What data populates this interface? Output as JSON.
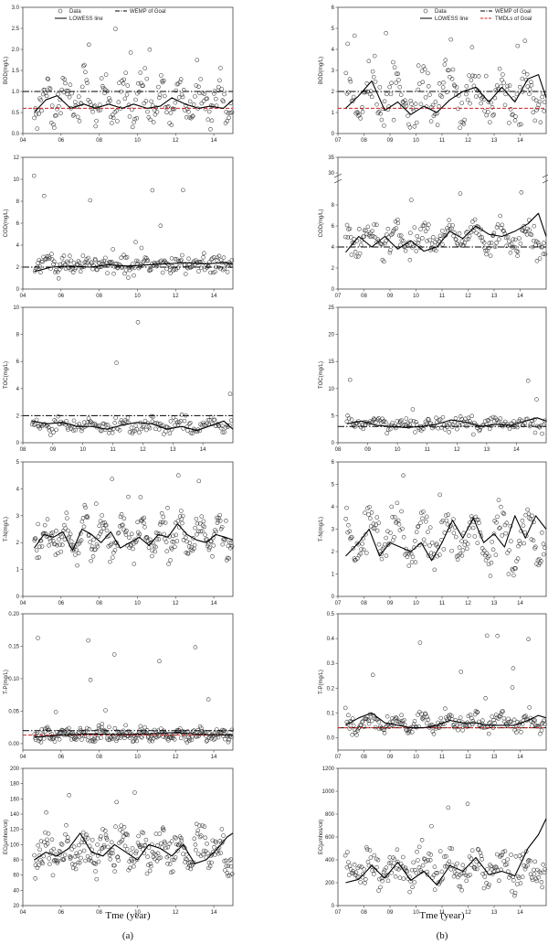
{
  "columns": [
    {
      "label": "(a)",
      "xtitle": "Tme (year)"
    },
    {
      "label": "(b)",
      "xtitle": "Tme (year)"
    }
  ],
  "legends": [
    {
      "items": [
        {
          "label": "Data",
          "kind": "marker"
        },
        {
          "label": "WEMP of Goal",
          "kind": "dashdot"
        },
        {
          "label": "LOWESS line",
          "kind": "line"
        }
      ]
    },
    {
      "items": [
        {
          "label": "Data",
          "kind": "marker"
        },
        {
          "label": "WEMP of Goal",
          "kind": "dashdot"
        },
        {
          "label": "LOWESS line",
          "kind": "line"
        },
        {
          "label": "TMDLs of Goal",
          "kind": "reddash"
        }
      ]
    }
  ],
  "colors": {
    "marker": "#333333",
    "lowess": "#000000",
    "wemp": "#000000",
    "tmdl": "#cc2222",
    "frame": "#444444"
  },
  "chart_data": [
    {
      "id": "a1",
      "type": "scatter",
      "ylabel": "BOD(mg/L)",
      "xlim": [
        2004,
        2015
      ],
      "ylim": [
        0,
        3
      ],
      "xticks": [
        "04",
        "06",
        "08",
        "10",
        "12",
        "14"
      ],
      "xtick_values": [
        2004,
        2006,
        2008,
        2010,
        2012,
        2014
      ],
      "yticks": [
        "0.0",
        "0.5",
        "1.0",
        "1.5",
        "2.0",
        "2.5",
        "3.0"
      ],
      "ytick_values": [
        0,
        0.5,
        1,
        1.5,
        2,
        2.5,
        3
      ],
      "wemp": 1.0,
      "tmdl": 0.6,
      "lowess_x": [
        2004.6,
        2005.2,
        2005.8,
        2006.5,
        2007.2,
        2007.8,
        2008.5,
        2009.2,
        2009.8,
        2010.5,
        2011.2,
        2011.8,
        2012.5,
        2013.2,
        2013.8,
        2014.5,
        2015
      ],
      "lowess_y": [
        0.5,
        0.8,
        0.9,
        0.6,
        0.7,
        0.6,
        0.7,
        0.6,
        0.7,
        0.6,
        0.65,
        0.85,
        0.7,
        0.6,
        0.65,
        0.6,
        0.8
      ],
      "scatter": {
        "x0": 2004.6,
        "x1": 2014.95,
        "n": 210,
        "base": 0.8,
        "amp": 0.35,
        "period": 1.0,
        "noise": 0.38,
        "spike": 0.06,
        "spikeMax": 2.8,
        "floor": 0.1
      }
    },
    {
      "id": "b1",
      "type": "scatter",
      "ylabel": "BOD(mg/L)",
      "xlim": [
        2007,
        2015
      ],
      "ylim": [
        0,
        6
      ],
      "xticks": [
        "07",
        "08",
        "09",
        "10",
        "11",
        "12",
        "13",
        "14"
      ],
      "xtick_values": [
        2007,
        2008,
        2009,
        2010,
        2011,
        2012,
        2013,
        2014
      ],
      "yticks": [
        "0",
        "1",
        "2",
        "3",
        "4",
        "5",
        "6"
      ],
      "ytick_values": [
        0,
        1,
        2,
        3,
        4,
        5,
        6
      ],
      "wemp": 2.0,
      "tmdl": 1.2,
      "lowess_x": [
        2007.3,
        2007.8,
        2008.3,
        2008.8,
        2009.3,
        2009.8,
        2010.3,
        2010.8,
        2011.3,
        2011.8,
        2012.3,
        2012.8,
        2013.3,
        2013.8,
        2014.3,
        2014.7,
        2015
      ],
      "lowess_y": [
        1.2,
        1.8,
        2.5,
        1.1,
        1.5,
        0.9,
        1.3,
        1.0,
        1.6,
        2.0,
        2.2,
        1.5,
        2.2,
        1.5,
        2.6,
        2.8,
        1.7
      ],
      "scatter": {
        "x0": 2007.3,
        "x1": 2014.95,
        "n": 200,
        "base": 1.7,
        "amp": 0.8,
        "period": 1.0,
        "noise": 0.9,
        "spike": 0.05,
        "spikeMax": 5.0,
        "floor": 0.2
      }
    },
    {
      "id": "a2",
      "type": "scatter",
      "ylabel": "COD(mg/L)",
      "xlim": [
        2004,
        2015
      ],
      "ylim": [
        0,
        12
      ],
      "xticks": [
        "04",
        "06",
        "08",
        "10",
        "12",
        "14"
      ],
      "xtick_values": [
        2004,
        2006,
        2008,
        2010,
        2012,
        2014
      ],
      "yticks": [
        "0",
        "2",
        "4",
        "6",
        "8",
        "10",
        "12"
      ],
      "ytick_values": [
        0,
        2,
        4,
        6,
        8,
        10,
        12
      ],
      "wemp": 2.0,
      "lowess_x": [
        2004.6,
        2005.5,
        2006.5,
        2007.5,
        2008.5,
        2009.5,
        2010.5,
        2011.5,
        2012.5,
        2013.5,
        2014.5,
        2015
      ],
      "lowess_y": [
        1.6,
        2.0,
        2.1,
        2.0,
        2.2,
        2.1,
        2.2,
        2.3,
        2.4,
        2.3,
        2.4,
        2.3
      ],
      "scatter": {
        "x0": 2004.6,
        "x1": 2014.95,
        "n": 220,
        "base": 2.2,
        "amp": 0.25,
        "period": 1.0,
        "noise": 0.75,
        "spike": 0.05,
        "spikeMax": 11.5,
        "floor": 0.9
      }
    },
    {
      "id": "b2",
      "type": "scatter",
      "ylabel": "COD(mg/L)",
      "xlim": [
        2007,
        2015
      ],
      "ylim": [
        0,
        35
      ],
      "broken": true,
      "xticks": [
        "07",
        "08",
        "09",
        "10",
        "11",
        "12",
        "13",
        "14"
      ],
      "xtick_values": [
        2007,
        2008,
        2009,
        2010,
        2011,
        2012,
        2013,
        2014
      ],
      "yticks": [
        "0",
        "2",
        "4",
        "6",
        "8",
        "30",
        "35"
      ],
      "ytick_values": [
        0,
        2,
        4,
        6,
        8,
        30,
        35
      ],
      "wemp": 4.0,
      "lowess_x": [
        2007.3,
        2007.8,
        2008.3,
        2008.8,
        2009.3,
        2009.8,
        2010.3,
        2010.8,
        2011.3,
        2011.8,
        2012.3,
        2012.8,
        2013.3,
        2013.8,
        2014.3,
        2014.7,
        2015
      ],
      "lowess_y": [
        3.5,
        5.0,
        4.0,
        5.0,
        3.8,
        4.6,
        3.6,
        4.0,
        5.5,
        4.8,
        6.0,
        5.2,
        5.0,
        5.5,
        6.2,
        7.2,
        5.0
      ],
      "scatter": {
        "x0": 2007.3,
        "x1": 2014.95,
        "n": 210,
        "base": 4.8,
        "amp": 1.0,
        "period": 1.0,
        "noise": 1.2,
        "spike": 0.01,
        "spikeMax": 33,
        "floor": 2.5
      }
    },
    {
      "id": "a3",
      "type": "scatter",
      "ylabel": "TOC(mg/L)",
      "xlim": [
        2008,
        2015
      ],
      "ylim": [
        0,
        10
      ],
      "xticks": [
        "08",
        "09",
        "10",
        "11",
        "12",
        "13",
        "14"
      ],
      "xtick_values": [
        2008,
        2009,
        2010,
        2011,
        2012,
        2013,
        2014
      ],
      "yticks": [
        "0",
        "2",
        "4",
        "6",
        "8",
        "10"
      ],
      "ytick_values": [
        0,
        2,
        4,
        6,
        8,
        10
      ],
      "wemp": 2.0,
      "lowess_x": [
        2008.3,
        2008.8,
        2009.3,
        2009.8,
        2010.3,
        2010.8,
        2011.3,
        2011.8,
        2012.3,
        2012.8,
        2013.3,
        2013.8,
        2014.3,
        2014.7,
        2015
      ],
      "lowess_y": [
        1.6,
        1.4,
        1.5,
        1.2,
        1.2,
        1.0,
        1.3,
        1.5,
        1.4,
        1.0,
        1.2,
        0.9,
        1.3,
        1.6,
        1.0
      ],
      "scatter": {
        "x0": 2008.3,
        "x1": 2014.95,
        "n": 170,
        "base": 1.3,
        "amp": 0.25,
        "period": 1.0,
        "noise": 0.45,
        "spike": 0.04,
        "spikeMax": 9.3,
        "floor": 0.5
      }
    },
    {
      "id": "b3",
      "type": "scatter",
      "ylabel": "TOC(mg/L)",
      "xlim": [
        2008,
        2015
      ],
      "ylim": [
        0,
        25
      ],
      "xticks": [
        "08",
        "09",
        "10",
        "11",
        "12",
        "13",
        "14"
      ],
      "xtick_values": [
        2008,
        2009,
        2010,
        2011,
        2012,
        2013,
        2014
      ],
      "yticks": [
        "0",
        "5",
        "10",
        "15",
        "20",
        "25"
      ],
      "ytick_values": [
        0,
        5,
        10,
        15,
        20,
        25
      ],
      "wemp": 3.0,
      "lowess_x": [
        2008.3,
        2008.8,
        2009.3,
        2009.8,
        2010.3,
        2010.8,
        2011.3,
        2011.8,
        2012.3,
        2012.8,
        2013.3,
        2013.8,
        2014.3,
        2014.7,
        2015
      ],
      "lowess_y": [
        3.5,
        4.0,
        3.2,
        3.0,
        2.8,
        3.0,
        3.4,
        4.2,
        3.8,
        3.0,
        3.4,
        3.2,
        4.0,
        4.6,
        4.0
      ],
      "scatter": {
        "x0": 2008.3,
        "x1": 2014.95,
        "n": 170,
        "base": 3.5,
        "amp": 0.6,
        "period": 1.0,
        "noise": 1.1,
        "spike": 0.03,
        "spikeMax": 21,
        "floor": 1.5
      }
    },
    {
      "id": "a4",
      "type": "scatter",
      "ylabel": "T-N(mg/L)",
      "xlim": [
        2004,
        2015
      ],
      "ylim": [
        0,
        5
      ],
      "xticks": [
        "04",
        "06",
        "08",
        "10",
        "12",
        "14"
      ],
      "xtick_values": [
        2004,
        2006,
        2008,
        2010,
        2012,
        2014
      ],
      "yticks": [
        "0",
        "1",
        "2",
        "3",
        "4",
        "5"
      ],
      "ytick_values": [
        0,
        1,
        2,
        3,
        4,
        5
      ],
      "lowess_x": [
        2004.6,
        2005.1,
        2005.6,
        2006.1,
        2006.6,
        2007.1,
        2007.6,
        2008.1,
        2008.6,
        2009.1,
        2009.6,
        2010.1,
        2010.6,
        2011.1,
        2011.6,
        2012.1,
        2012.6,
        2013.1,
        2013.6,
        2014.1,
        2014.6,
        2015
      ],
      "lowess_y": [
        1.8,
        2.3,
        2.2,
        2.4,
        1.7,
        2.5,
        2.3,
        2.0,
        2.4,
        1.8,
        2.0,
        2.2,
        1.9,
        2.3,
        2.2,
        2.7,
        2.3,
        2.1,
        2.0,
        2.3,
        2.2,
        2.1
      ],
      "scatter": {
        "x0": 2004.6,
        "x1": 2014.95,
        "n": 260,
        "base": 2.2,
        "amp": 0.45,
        "period": 1.0,
        "noise": 0.5,
        "spike": 0.03,
        "spikeMax": 4.6,
        "floor": 1.0
      }
    },
    {
      "id": "b4",
      "type": "scatter",
      "ylabel": "T-N(mg/L)",
      "xlim": [
        2007,
        2015
      ],
      "ylim": [
        0,
        6
      ],
      "xticks": [
        "07",
        "08",
        "09",
        "10",
        "11",
        "12",
        "13",
        "14"
      ],
      "xtick_values": [
        2007,
        2008,
        2009,
        2010,
        2011,
        2012,
        2013,
        2014
      ],
      "yticks": [
        "0",
        "1",
        "2",
        "3",
        "4",
        "5",
        "6"
      ],
      "ytick_values": [
        0,
        1,
        2,
        3,
        4,
        5,
        6
      ],
      "lowess_x": [
        2007.3,
        2007.8,
        2008.2,
        2008.6,
        2009.0,
        2009.4,
        2009.8,
        2010.2,
        2010.6,
        2011.0,
        2011.4,
        2011.8,
        2012.2,
        2012.6,
        2013.0,
        2013.4,
        2013.8,
        2014.2,
        2014.6,
        2015
      ],
      "lowess_y": [
        1.8,
        2.4,
        3.0,
        1.8,
        2.4,
        2.2,
        2.0,
        2.4,
        1.6,
        2.4,
        3.4,
        2.6,
        3.5,
        2.4,
        2.8,
        2.2,
        3.6,
        2.6,
        3.6,
        3.0
      ],
      "scatter": {
        "x0": 2007.3,
        "x1": 2014.95,
        "n": 220,
        "base": 2.6,
        "amp": 0.8,
        "period": 1.0,
        "noise": 0.8,
        "spike": 0.02,
        "spikeMax": 5.6,
        "floor": 0.9
      }
    },
    {
      "id": "a5",
      "type": "scatter",
      "ylabel": "T-P(mg/L)",
      "xlim": [
        2004,
        2015
      ],
      "ylim": [
        -0.01,
        0.2
      ],
      "xticks": [
        "04",
        "06",
        "08",
        "10",
        "12",
        "14"
      ],
      "xtick_values": [
        2004,
        2006,
        2008,
        2010,
        2012,
        2014
      ],
      "yticks": [
        "0.00",
        "0.05",
        "0.10",
        "0.15",
        "0.20"
      ],
      "ytick_values": [
        0,
        0.05,
        0.1,
        0.15,
        0.2
      ],
      "wemp": 0.02,
      "tmdl": 0.013,
      "lowess_x": [
        2004.6,
        2006,
        2007.5,
        2009,
        2010.5,
        2012,
        2013.5,
        2015
      ],
      "lowess_y": [
        0.01,
        0.013,
        0.015,
        0.014,
        0.015,
        0.017,
        0.014,
        0.013
      ],
      "scatter": {
        "x0": 2004.6,
        "x1": 2014.95,
        "n": 260,
        "base": 0.014,
        "amp": 0.004,
        "period": 1.0,
        "noise": 0.01,
        "spike": 0.03,
        "spikeMax": 0.195,
        "floor": 0.002
      }
    },
    {
      "id": "b5",
      "type": "scatter",
      "ylabel": "T-P(mg/L)",
      "xlim": [
        2007,
        2015
      ],
      "ylim": [
        -0.05,
        0.5
      ],
      "xticks": [
        "07",
        "08",
        "09",
        "10",
        "11",
        "12",
        "13",
        "14"
      ],
      "xtick_values": [
        2007,
        2008,
        2009,
        2010,
        2011,
        2012,
        2013,
        2014
      ],
      "yticks": [
        "0.0",
        "0.1",
        "0.2",
        "0.3",
        "0.4",
        "0.5"
      ],
      "ytick_values": [
        0,
        0.1,
        0.2,
        0.3,
        0.4,
        0.5
      ],
      "wemp": 0.04,
      "tmdl": 0.04,
      "lowess_x": [
        2007.3,
        2007.8,
        2008.3,
        2008.8,
        2009.3,
        2009.8,
        2010.3,
        2010.8,
        2011.3,
        2011.8,
        2012.3,
        2012.8,
        2013.3,
        2013.8,
        2014.3,
        2014.7,
        2015
      ],
      "lowess_y": [
        0.05,
        0.08,
        0.1,
        0.06,
        0.05,
        0.04,
        0.04,
        0.05,
        0.07,
        0.06,
        0.06,
        0.05,
        0.05,
        0.05,
        0.07,
        0.09,
        0.08
      ],
      "scatter": {
        "x0": 2007.3,
        "x1": 2014.95,
        "n": 220,
        "base": 0.06,
        "amp": 0.02,
        "period": 1.0,
        "noise": 0.03,
        "spike": 0.03,
        "spikeMax": 0.42,
        "floor": 0.01
      }
    },
    {
      "id": "a6",
      "type": "scatter",
      "ylabel": "EC(µmhos/㎝)",
      "xlim": [
        2004,
        2015
      ],
      "ylim": [
        20,
        200
      ],
      "xticks": [
        "04",
        "06",
        "08",
        "10",
        "12",
        "14"
      ],
      "xtick_values": [
        2004,
        2006,
        2008,
        2010,
        2012,
        2014
      ],
      "yticks": [
        "20",
        "40",
        "60",
        "80",
        "100",
        "120",
        "140",
        "160",
        "180",
        "200"
      ],
      "ytick_values": [
        20,
        40,
        60,
        80,
        100,
        120,
        140,
        160,
        180,
        200
      ],
      "lowess_x": [
        2004.6,
        2005.2,
        2005.8,
        2006.4,
        2007,
        2007.6,
        2008.2,
        2008.8,
        2009.4,
        2010,
        2010.6,
        2011.2,
        2011.8,
        2012.4,
        2013,
        2013.6,
        2014.2,
        2014.7,
        2015
      ],
      "lowess_y": [
        80,
        90,
        85,
        95,
        115,
        90,
        85,
        100,
        90,
        80,
        100,
        95,
        85,
        100,
        75,
        80,
        95,
        110,
        115
      ],
      "scatter": {
        "x0": 2004.6,
        "x1": 2014.95,
        "n": 280,
        "base": 92,
        "amp": 15,
        "period": 1.0,
        "noise": 22,
        "spike": 0.02,
        "spikeMax": 180,
        "floor": 38
      }
    },
    {
      "id": "b6",
      "type": "scatter",
      "ylabel": "EC(µmhos/㎝)",
      "xlim": [
        2007,
        2015
      ],
      "ylim": [
        0,
        1200
      ],
      "xticks": [
        "07",
        "08",
        "09",
        "10",
        "11",
        "12",
        "13",
        "14"
      ],
      "xtick_values": [
        2007,
        2008,
        2009,
        2010,
        2011,
        2012,
        2013,
        2014
      ],
      "yticks": [
        "0",
        "200",
        "400",
        "600",
        "800",
        "1000",
        "1200"
      ],
      "ytick_values": [
        0,
        200,
        400,
        600,
        800,
        1000,
        1200
      ],
      "lowess_x": [
        2007.3,
        2007.8,
        2008.3,
        2008.8,
        2009.3,
        2009.8,
        2010.3,
        2010.8,
        2011.3,
        2011.8,
        2012.3,
        2012.8,
        2013.3,
        2013.8,
        2014.3,
        2014.7,
        2015
      ],
      "lowess_y": [
        200,
        230,
        350,
        240,
        380,
        220,
        300,
        180,
        350,
        300,
        420,
        270,
        300,
        260,
        500,
        620,
        760
      ],
      "scatter": {
        "x0": 2007.3,
        "x1": 2014.95,
        "n": 230,
        "base": 320,
        "amp": 90,
        "period": 1.0,
        "noise": 140,
        "spike": 0.02,
        "spikeMax": 1020,
        "floor": 80
      }
    }
  ]
}
